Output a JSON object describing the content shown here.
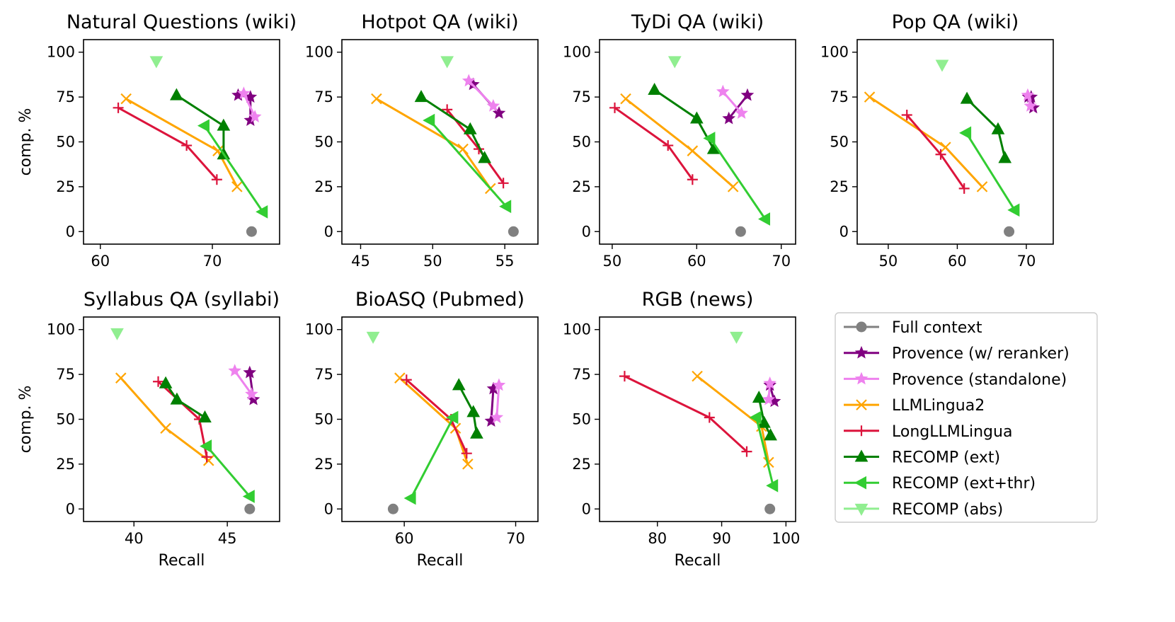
{
  "chart_data": [
    {
      "type": "line",
      "title": "Natural Questions (wiki)",
      "xlabel": "",
      "ylabel": "comp. %",
      "xlim": [
        58.5,
        76.0
      ],
      "ylim": [
        -7,
        107
      ],
      "xticks": [
        60,
        70
      ],
      "yticks": [
        0,
        25,
        50,
        75,
        100
      ],
      "series": [
        {
          "name": "Full context",
          "x": [
            73.5
          ],
          "y": [
            0
          ]
        },
        {
          "name": "Provence (w/ reranker)",
          "x": [
            72.3,
            73.4,
            73.4
          ],
          "y": [
            76,
            75,
            62
          ]
        },
        {
          "name": "Provence (standalone)",
          "x": [
            72.8,
            73.8
          ],
          "y": [
            77,
            64
          ]
        },
        {
          "name": "LLMLingua2",
          "x": [
            62.3,
            70.5,
            72.2
          ],
          "y": [
            74,
            45,
            25
          ]
        },
        {
          "name": "LongLLMLingua",
          "x": [
            61.6,
            67.7,
            70.4
          ],
          "y": [
            69,
            48,
            29
          ]
        },
        {
          "name": "RECOMP (ext)",
          "x": [
            66.8,
            71.0,
            71.0
          ],
          "y": [
            76,
            59,
            43
          ]
        },
        {
          "name": "RECOMP (ext+thr)",
          "x": [
            69.3,
            74.5
          ],
          "y": [
            59,
            11
          ]
        },
        {
          "name": "RECOMP (abs)",
          "x": [
            65.0
          ],
          "y": [
            95
          ]
        }
      ]
    },
    {
      "type": "line",
      "title": "Hotpot QA (wiki)",
      "xlabel": "",
      "ylabel": "",
      "xlim": [
        43.7,
        57.3
      ],
      "ylim": [
        -7,
        107
      ],
      "xticks": [
        45,
        50,
        55
      ],
      "yticks": [
        0,
        25,
        50,
        75,
        100
      ],
      "series": [
        {
          "name": "Full context",
          "x": [
            55.6
          ],
          "y": [
            0
          ]
        },
        {
          "name": "Provence (w/ reranker)",
          "x": [
            52.8,
            54.6
          ],
          "y": [
            82,
            66
          ]
        },
        {
          "name": "Provence (standalone)",
          "x": [
            52.5,
            54.2
          ],
          "y": [
            84,
            70
          ]
        },
        {
          "name": "LLMLingua2",
          "x": [
            46.1,
            52.1,
            54.0
          ],
          "y": [
            74,
            46,
            24
          ]
        },
        {
          "name": "LongLLMLingua",
          "x": [
            51.0,
            53.2,
            54.9
          ],
          "y": [
            68,
            46,
            27
          ]
        },
        {
          "name": "RECOMP (ext)",
          "x": [
            49.2,
            52.6,
            53.6
          ],
          "y": [
            75,
            57,
            41
          ]
        },
        {
          "name": "RECOMP (ext+thr)",
          "x": [
            49.8,
            55.1
          ],
          "y": [
            62,
            14
          ]
        },
        {
          "name": "RECOMP (abs)",
          "x": [
            51.0
          ],
          "y": [
            95
          ]
        }
      ]
    },
    {
      "type": "line",
      "title": "TyDi QA (wiki)",
      "xlabel": "",
      "ylabel": "",
      "xlim": [
        48.5,
        71.7
      ],
      "ylim": [
        -7,
        107
      ],
      "xticks": [
        50,
        60,
        70
      ],
      "yticks": [
        0,
        25,
        50,
        75,
        100
      ],
      "series": [
        {
          "name": "Full context",
          "x": [
            65.2
          ],
          "y": [
            0
          ]
        },
        {
          "name": "Provence (w/ reranker)",
          "x": [
            63.8,
            66.0
          ],
          "y": [
            63,
            76
          ]
        },
        {
          "name": "Provence (standalone)",
          "x": [
            63.1,
            65.3
          ],
          "y": [
            78,
            66
          ]
        },
        {
          "name": "LLMLingua2",
          "x": [
            51.6,
            59.5,
            64.3
          ],
          "y": [
            74,
            45,
            25
          ]
        },
        {
          "name": "LongLLMLingua",
          "x": [
            50.3,
            56.6,
            59.5
          ],
          "y": [
            69,
            48,
            29
          ]
        },
        {
          "name": "RECOMP (ext)",
          "x": [
            55.0,
            60.0,
            62.0
          ],
          "y": [
            79,
            63,
            46
          ]
        },
        {
          "name": "RECOMP (ext+thr)",
          "x": [
            61.6,
            68.1
          ],
          "y": [
            52,
            7
          ]
        },
        {
          "name": "RECOMP (abs)",
          "x": [
            57.4
          ],
          "y": [
            95
          ]
        }
      ]
    },
    {
      "type": "line",
      "title": "Pop QA (wiki)",
      "xlabel": "",
      "ylabel": "",
      "xlim": [
        45.5,
        73.9
      ],
      "ylim": [
        -7,
        107
      ],
      "xticks": [
        50,
        60,
        70
      ],
      "yticks": [
        0,
        25,
        50,
        75,
        100
      ],
      "series": [
        {
          "name": "Full context",
          "x": [
            67.5
          ],
          "y": [
            0
          ]
        },
        {
          "name": "Provence (w/ reranker)",
          "x": [
            70.3,
            70.7,
            71.0
          ],
          "y": [
            75,
            75,
            69
          ]
        },
        {
          "name": "Provence (standalone)",
          "x": [
            70.2,
            70.6
          ],
          "y": [
            76,
            70
          ]
        },
        {
          "name": "LLMLingua2",
          "x": [
            47.3,
            58.3,
            63.6
          ],
          "y": [
            75,
            47,
            25
          ]
        },
        {
          "name": "LongLLMLingua",
          "x": [
            52.7,
            57.6,
            61.0
          ],
          "y": [
            65,
            43,
            24
          ]
        },
        {
          "name": "RECOMP (ext)",
          "x": [
            61.4,
            65.9,
            66.9
          ],
          "y": [
            74,
            57,
            41
          ]
        },
        {
          "name": "RECOMP (ext+thr)",
          "x": [
            61.3,
            68.3
          ],
          "y": [
            55,
            12
          ]
        },
        {
          "name": "RECOMP (abs)",
          "x": [
            57.8
          ],
          "y": [
            93
          ]
        }
      ]
    },
    {
      "type": "line",
      "title": "Syllabus QA (syllabi)",
      "xlabel": "Recall",
      "ylabel": "comp. %",
      "xlim": [
        37.3,
        47.8
      ],
      "ylim": [
        -7,
        107
      ],
      "xticks": [
        40,
        45
      ],
      "yticks": [
        0,
        25,
        50,
        75,
        100
      ],
      "series": [
        {
          "name": "Full context",
          "x": [
            46.2
          ],
          "y": [
            0
          ]
        },
        {
          "name": "Provence (w/ reranker)",
          "x": [
            46.2,
            46.4
          ],
          "y": [
            76,
            61
          ]
        },
        {
          "name": "Provence (standalone)",
          "x": [
            45.4,
            46.3
          ],
          "y": [
            77,
            64
          ]
        },
        {
          "name": "LLMLingua2",
          "x": [
            39.3,
            41.7,
            44.0
          ],
          "y": [
            73,
            45,
            27
          ]
        },
        {
          "name": "LongLLMLingua",
          "x": [
            41.3,
            43.5,
            43.9
          ],
          "y": [
            71,
            50,
            29
          ]
        },
        {
          "name": "RECOMP (ext)",
          "x": [
            41.7,
            42.3,
            43.8
          ],
          "y": [
            70,
            61,
            51
          ]
        },
        {
          "name": "RECOMP (ext+thr)",
          "x": [
            43.9,
            46.2
          ],
          "y": [
            35,
            7
          ]
        },
        {
          "name": "RECOMP (abs)",
          "x": [
            39.1
          ],
          "y": [
            98
          ]
        }
      ]
    },
    {
      "type": "line",
      "title": "BioASQ (Pubmed)",
      "xlabel": "Recall",
      "ylabel": "",
      "xlim": [
        54.4,
        72.0
      ],
      "ylim": [
        -7,
        107
      ],
      "xticks": [
        60,
        70
      ],
      "yticks": [
        0,
        25,
        50,
        75,
        100
      ],
      "series": [
        {
          "name": "Full context",
          "x": [
            59.0
          ],
          "y": [
            0
          ]
        },
        {
          "name": "Provence (w/ reranker)",
          "x": [
            67.8,
            68.0
          ],
          "y": [
            49,
            67
          ]
        },
        {
          "name": "Provence (standalone)",
          "x": [
            68.3,
            68.5
          ],
          "y": [
            51,
            69
          ]
        },
        {
          "name": "LLMLingua2",
          "x": [
            59.6,
            64.6,
            65.7
          ],
          "y": [
            73,
            45,
            25
          ]
        },
        {
          "name": "LongLLMLingua",
          "x": [
            60.2,
            64.2,
            65.6
          ],
          "y": [
            72,
            50,
            31
          ]
        },
        {
          "name": "RECOMP (ext)",
          "x": [
            64.9,
            66.2,
            66.5
          ],
          "y": [
            69,
            54,
            42
          ]
        },
        {
          "name": "RECOMP (ext+thr)",
          "x": [
            60.6,
            64.4
          ],
          "y": [
            6,
            51
          ]
        },
        {
          "name": "RECOMP (abs)",
          "x": [
            57.2
          ],
          "y": [
            96
          ]
        }
      ]
    },
    {
      "type": "line",
      "title": "RGB (news)",
      "xlabel": "Recall",
      "ylabel": "",
      "xlim": [
        71.0,
        101.5
      ],
      "ylim": [
        -7,
        107
      ],
      "xticks": [
        80,
        90,
        100
      ],
      "yticks": [
        0,
        25,
        50,
        75,
        100
      ],
      "series": [
        {
          "name": "Full context",
          "x": [
            97.5
          ],
          "y": [
            0
          ]
        },
        {
          "name": "Provence (w/ reranker)",
          "x": [
            97.5,
            98.2
          ],
          "y": [
            69,
            60
          ]
        },
        {
          "name": "Provence (standalone)",
          "x": [
            97.5,
            97.3
          ],
          "y": [
            70,
            61
          ]
        },
        {
          "name": "LLMLingua2",
          "x": [
            86.2,
            96.2,
            97.3
          ],
          "y": [
            74,
            46,
            26
          ]
        },
        {
          "name": "LongLLMLingua",
          "x": [
            74.9,
            88.1,
            93.9
          ],
          "y": [
            74,
            51,
            32
          ]
        },
        {
          "name": "RECOMP (ext)",
          "x": [
            95.8,
            96.6,
            97.6
          ],
          "y": [
            62,
            48,
            41
          ]
        },
        {
          "name": "RECOMP (ext+thr)",
          "x": [
            95.4,
            98.0
          ],
          "y": [
            51,
            13
          ]
        },
        {
          "name": "RECOMP (abs)",
          "x": [
            92.3
          ],
          "y": [
            96
          ]
        }
      ]
    }
  ],
  "legend": [
    {
      "label": "Full context",
      "color": "#808080",
      "marker": "circle"
    },
    {
      "label": "Provence (w/ reranker)",
      "color": "#800080",
      "marker": "star"
    },
    {
      "label": "Provence (standalone)",
      "color": "#ee82ee",
      "marker": "star"
    },
    {
      "label": "LLMLingua2",
      "color": "#ffa500",
      "marker": "x"
    },
    {
      "label": "LongLLMLingua",
      "color": "#dc143c",
      "marker": "plus"
    },
    {
      "label": "RECOMP (ext)",
      "color": "#008000",
      "marker": "triangle-up"
    },
    {
      "label": "RECOMP (ext+thr)",
      "color": "#32cd32",
      "marker": "triangle-left"
    },
    {
      "label": "RECOMP (abs)",
      "color": "#90ee90",
      "marker": "triangle-down"
    }
  ]
}
